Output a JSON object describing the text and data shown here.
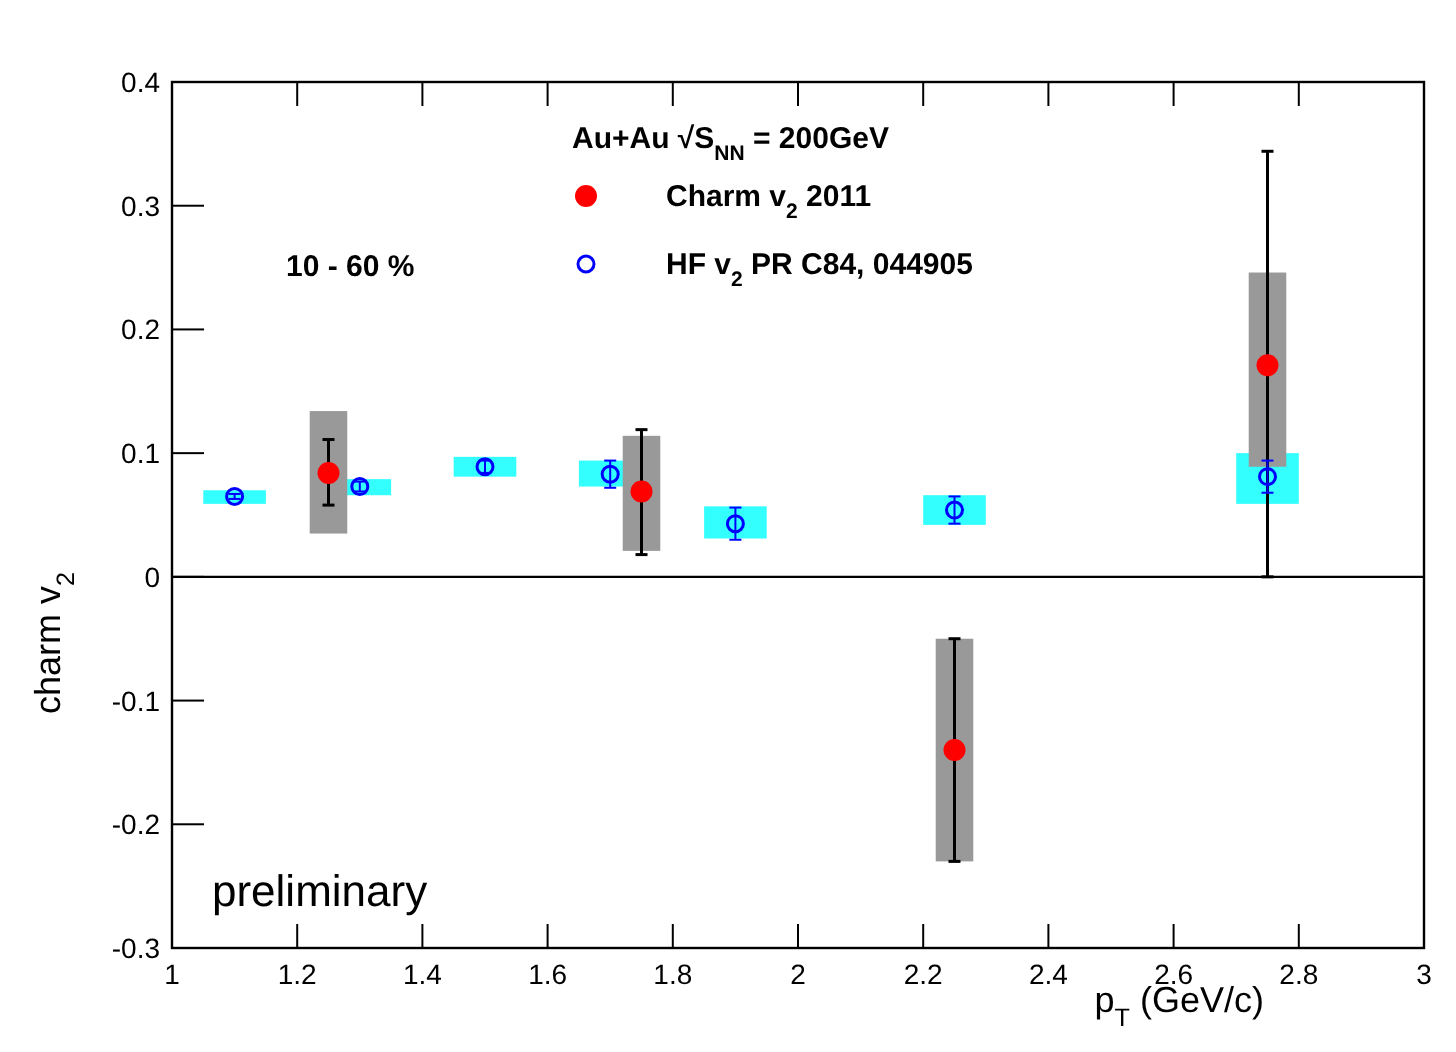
{
  "chart_data": {
    "type": "scatter",
    "xlabel": "p$_{T}$ (GeV/c)",
    "ylabel": "charm v$_{2}$",
    "xlim": [
      1,
      3
    ],
    "xticks": [
      1,
      1.2,
      1.4,
      1.6,
      1.8,
      2,
      2.2,
      2.4,
      2.6,
      2.8,
      3
    ],
    "ylim": [
      -0.3,
      0.4
    ],
    "yticks": [
      -0.3,
      -0.2,
      -0.1,
      0,
      0.1,
      0.2,
      0.3,
      0.4
    ],
    "grid": false,
    "legend": "top",
    "marker": "circle",
    "annotations": [
      "Au+Au √S$_{NN}$ = 200GeV",
      "10 - 60 %",
      "preliminary"
    ],
    "ref_lines": [
      {
        "axis": "y",
        "value": 0,
        "color": "#000000"
      }
    ],
    "series": [
      {
        "type": "bar",
        "color": "#33ffff",
        "x": [
          1.1,
          1.3,
          1.5,
          1.7,
          1.9,
          2.25,
          2.75
        ],
        "base": [
          0.059,
          0.066,
          0.081,
          0.073,
          0.031,
          0.042,
          0.059
        ],
        "values": [
          0.011,
          0.013,
          0.016,
          0.021,
          0.026,
          0.024,
          0.041
        ]
      },
      {
        "type": "bar",
        "color": "#999999",
        "x": [
          1.25,
          1.75,
          2.25,
          2.75
        ],
        "base": [
          0.035,
          0.021,
          -0.23,
          0.089
        ],
        "values": [
          0.099,
          0.093,
          0.18,
          0.157
        ]
      },
      {
        "name": "Charm v$_{2}$ 2011",
        "color": "#ff0000",
        "x": [
          1.25,
          1.75,
          2.25,
          2.75
        ],
        "values": [
          0.084,
          0.069,
          -0.14,
          0.171
        ],
        "errors": [
          [
            0.058,
            0.111
          ],
          [
            0.018,
            0.119
          ],
          [
            -0.23,
            -0.05
          ],
          [
            0,
            0.344
          ]
        ]
      },
      {
        "name": "HF v$_{2}$ PR C84, 044905",
        "color": "#0000ff",
        "x": [
          1.1,
          1.3,
          1.5,
          1.7,
          1.9,
          2.25,
          2.75
        ],
        "values": [
          0.065,
          0.073,
          0.089,
          0.083,
          0.043,
          0.054,
          0.081
        ],
        "errors": [
          0.002,
          0.004,
          0.005,
          0.011,
          0.013,
          0.011,
          0.013
        ]
      }
    ]
  }
}
